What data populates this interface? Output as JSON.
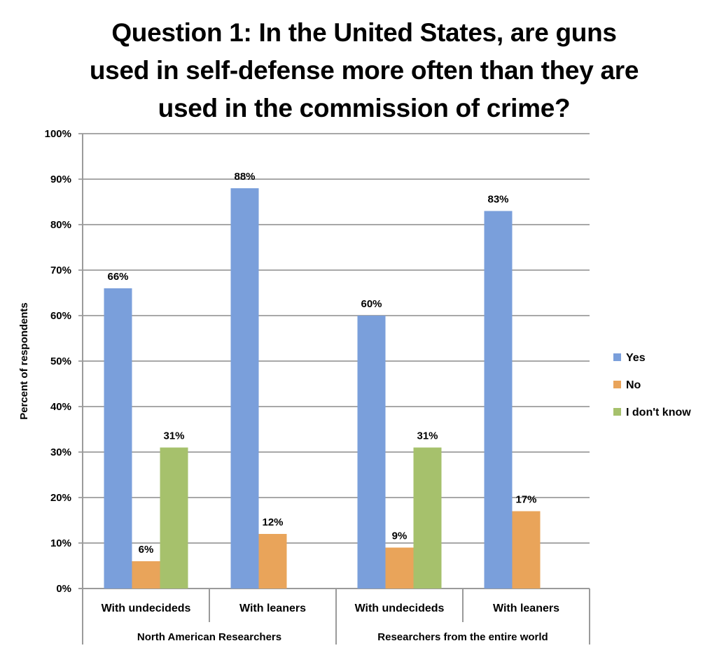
{
  "chart_data": {
    "type": "bar",
    "title": "Question 1: In the United States, are guns used in self-defense more often than they are used in the commission of crime?",
    "title_lines": [
      "Question 1: In the United States, are guns",
      "used in self-defense more often than they are",
      "used in the commission of crime?"
    ],
    "ylabel": "Percent of respondents",
    "xlabel": "",
    "ylim": [
      0,
      100
    ],
    "y_ticks": [
      "0%",
      "10%",
      "20%",
      "30%",
      "40%",
      "50%",
      "60%",
      "70%",
      "80%",
      "90%",
      "100%"
    ],
    "y_tick_values": [
      0,
      10,
      20,
      30,
      40,
      50,
      60,
      70,
      80,
      90,
      100
    ],
    "grid": true,
    "legend_position": "right",
    "categories": [
      "With undecideds",
      "With leaners",
      "With undecideds",
      "With leaners"
    ],
    "groups": [
      {
        "label": "North American Researchers",
        "categories": [
          0,
          1
        ]
      },
      {
        "label": "Researchers from the entire world",
        "categories": [
          2,
          3
        ]
      }
    ],
    "series": [
      {
        "name": "Yes",
        "color": "#7a9fdb",
        "values": [
          66,
          88,
          60,
          83
        ],
        "labels": [
          "66%",
          "88%",
          "60%",
          "83%"
        ]
      },
      {
        "name": "No",
        "color": "#e9a45a",
        "values": [
          6,
          12,
          9,
          17
        ],
        "labels": [
          "6%",
          "12%",
          "9%",
          "17%"
        ]
      },
      {
        "name": "I don't know",
        "color": "#a6c16c",
        "values": [
          31,
          null,
          31,
          null
        ],
        "labels": [
          "31%",
          "",
          "31%",
          ""
        ]
      }
    ]
  }
}
